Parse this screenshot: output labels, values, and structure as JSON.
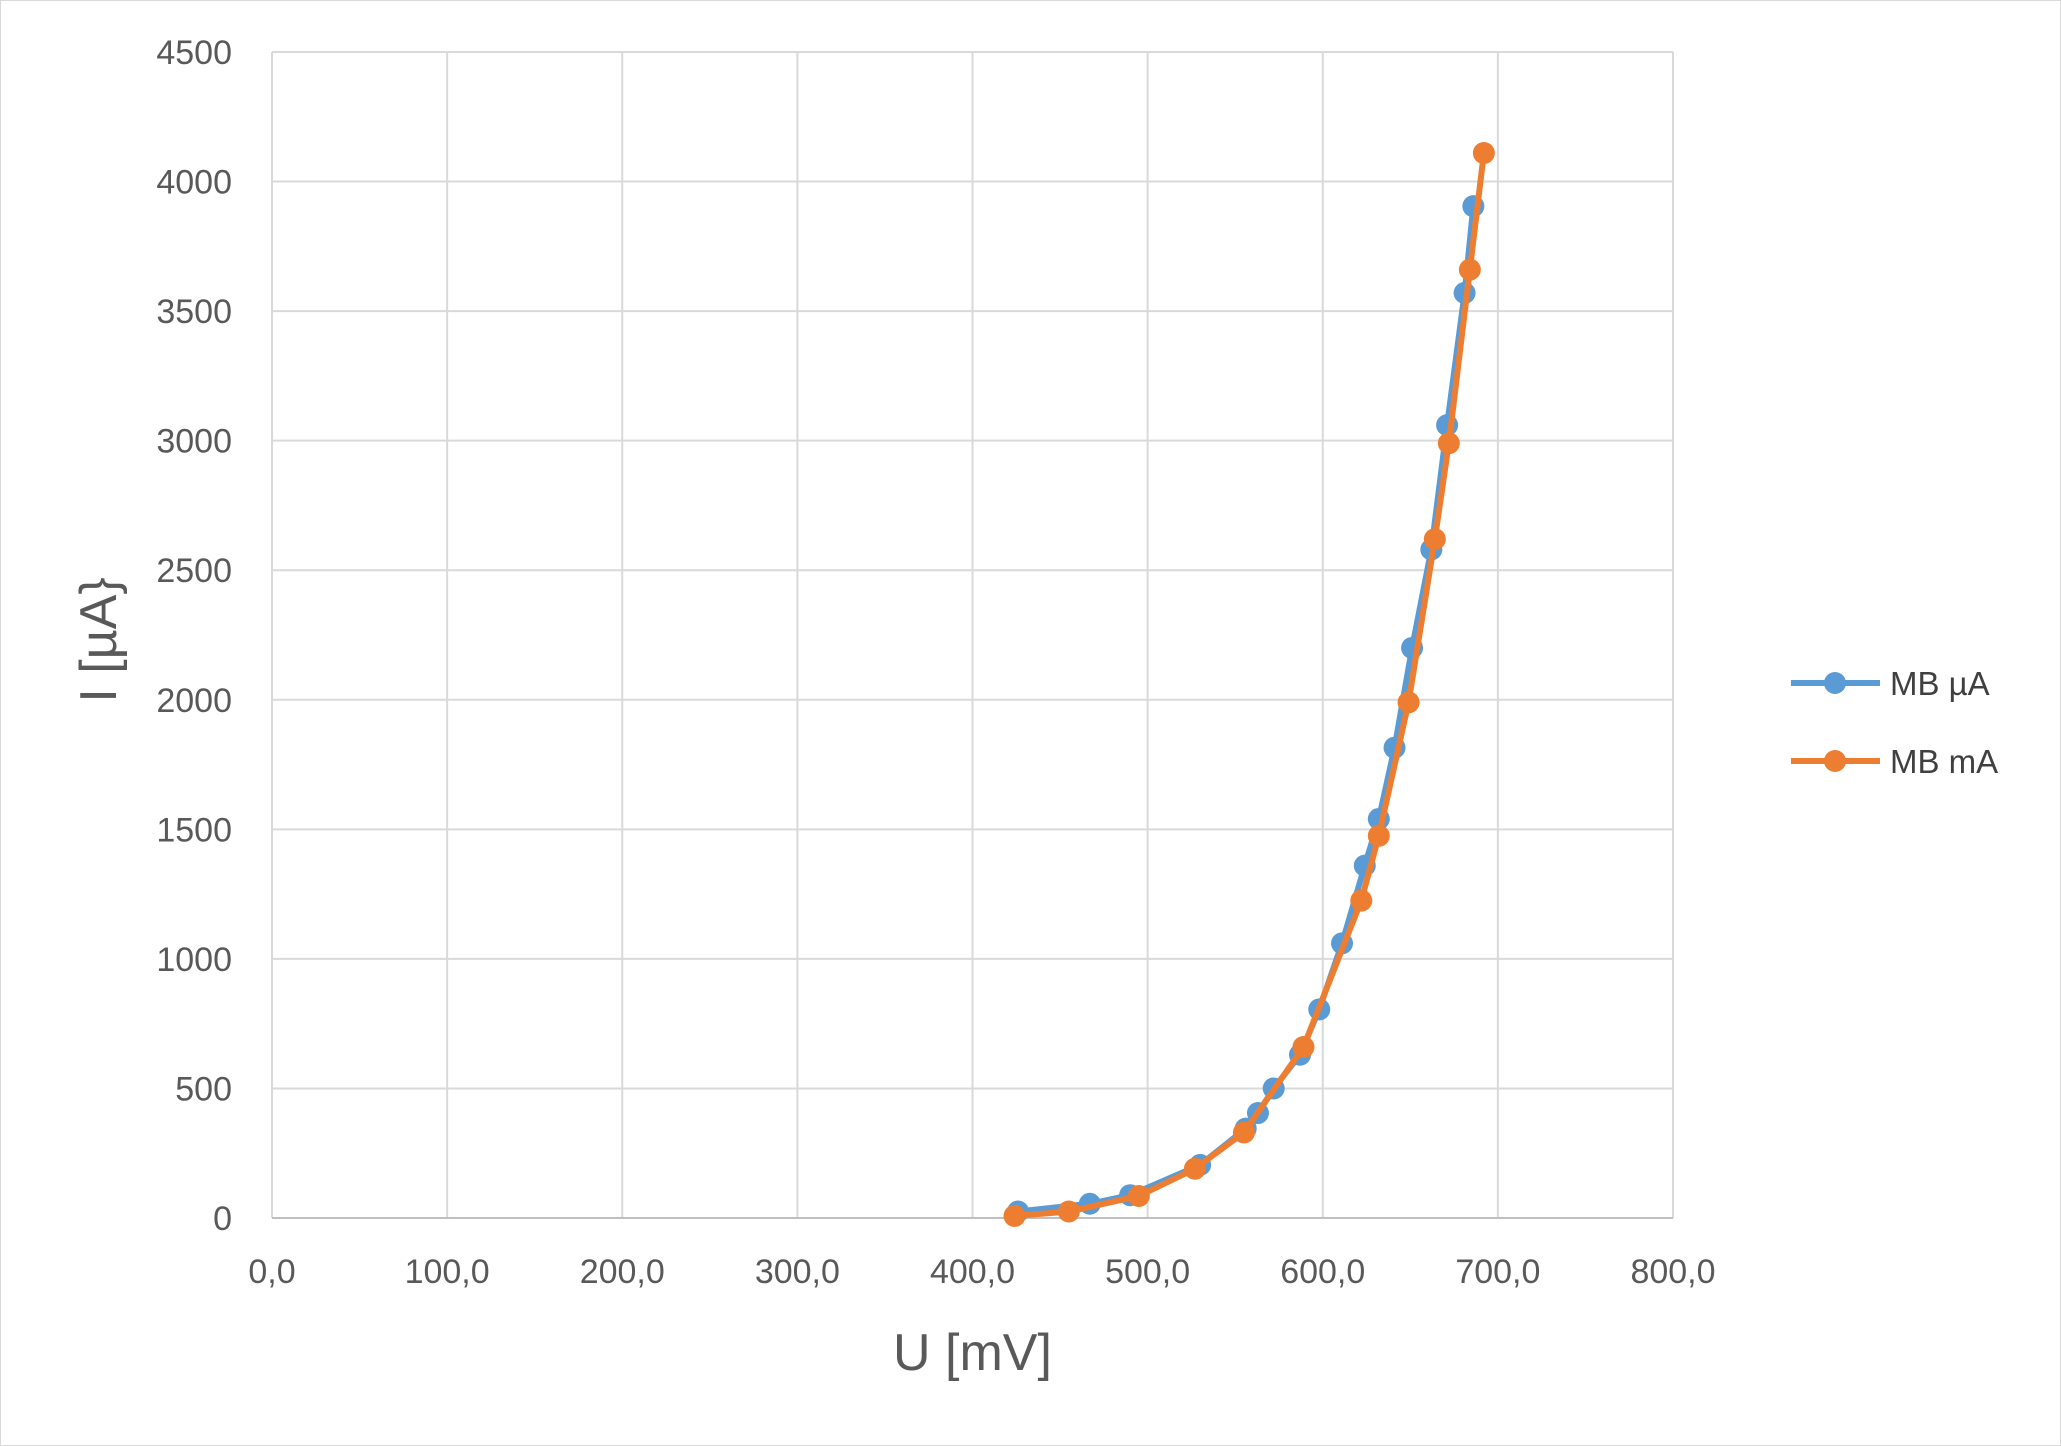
{
  "chart_data": {
    "type": "scatter",
    "title": "",
    "xlabel": "U [mV]",
    "ylabel": "I [µA}",
    "xlim": [
      0,
      800
    ],
    "ylim": [
      0,
      4500
    ],
    "x_ticks": [
      "0,0",
      "100,0",
      "200,0",
      "300,0",
      "400,0",
      "500,0",
      "600,0",
      "700,0",
      "800,0"
    ],
    "y_ticks": [
      "0",
      "500",
      "1000",
      "1500",
      "2000",
      "2500",
      "3000",
      "3500",
      "4000",
      "4500"
    ],
    "x_tick_values": [
      0,
      100,
      200,
      300,
      400,
      500,
      600,
      700,
      800
    ],
    "y_tick_values": [
      0,
      500,
      1000,
      1500,
      2000,
      2500,
      3000,
      3500,
      4000,
      4500
    ],
    "grid": true,
    "legend_position": "right",
    "series": [
      {
        "name": "MB µA",
        "color": "#5B9BD5",
        "points": [
          [
            426,
            25
          ],
          [
            467,
            55
          ],
          [
            490,
            88
          ],
          [
            530,
            205
          ],
          [
            556,
            345
          ],
          [
            563,
            405
          ],
          [
            572,
            500
          ],
          [
            587,
            630
          ],
          [
            598,
            805
          ],
          [
            611,
            1060
          ],
          [
            624,
            1360
          ],
          [
            632,
            1540
          ],
          [
            641,
            1815
          ],
          [
            651,
            2200
          ],
          [
            662,
            2580
          ],
          [
            671,
            3060
          ],
          [
            681,
            3570
          ],
          [
            686,
            3905
          ]
        ]
      },
      {
        "name": "MB mA",
        "color": "#ED7D31",
        "points": [
          [
            424,
            8
          ],
          [
            455,
            25
          ],
          [
            495,
            85
          ],
          [
            527,
            190
          ],
          [
            555,
            330
          ],
          [
            589,
            660
          ],
          [
            622,
            1225
          ],
          [
            632,
            1475
          ],
          [
            649,
            1990
          ],
          [
            664,
            2620
          ],
          [
            672,
            2990
          ],
          [
            684,
            3660
          ],
          [
            692,
            4110
          ]
        ]
      }
    ]
  }
}
